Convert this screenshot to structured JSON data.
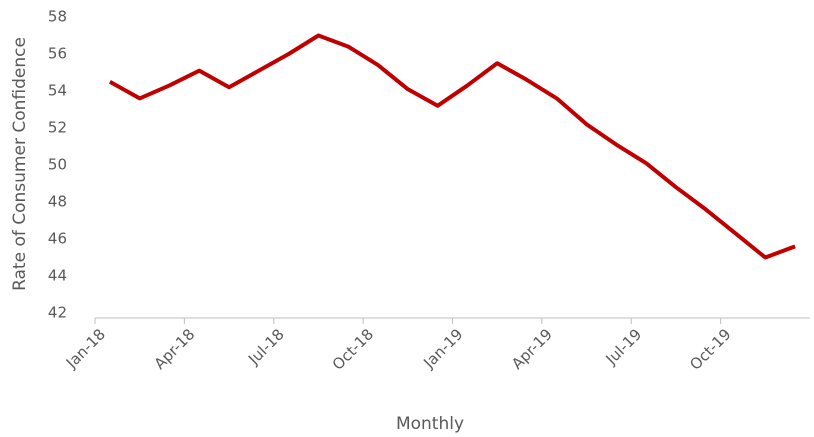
{
  "chart_data": {
    "type": "line",
    "x_label": "Monthly",
    "y_label": "Rate of Consumer Confidence",
    "categories": [
      "Jan-18",
      null,
      null,
      "Apr-18",
      null,
      null,
      "Jul-18",
      null,
      null,
      "Oct-18",
      null,
      null,
      "Jan-19",
      null,
      null,
      "Apr-19",
      null,
      null,
      "Jul-19",
      null,
      null,
      "Oct-19",
      null,
      null
    ],
    "series": [
      {
        "name": "Rate of Consumer Confidence",
        "color": "#c00000",
        "values": [
          54.5,
          53.6,
          54.3,
          55.1,
          54.2,
          55.1,
          56.0,
          57.0,
          56.4,
          55.4,
          54.1,
          53.2,
          54.3,
          55.5,
          54.6,
          53.6,
          52.2,
          51.1,
          50.1,
          48.8,
          47.6,
          46.3,
          45.0,
          45.6
        ]
      }
    ],
    "ylim": [
      42,
      58
    ],
    "yticks": [
      42,
      44,
      46,
      48,
      50,
      52,
      54,
      56,
      58
    ],
    "grid": false
  }
}
